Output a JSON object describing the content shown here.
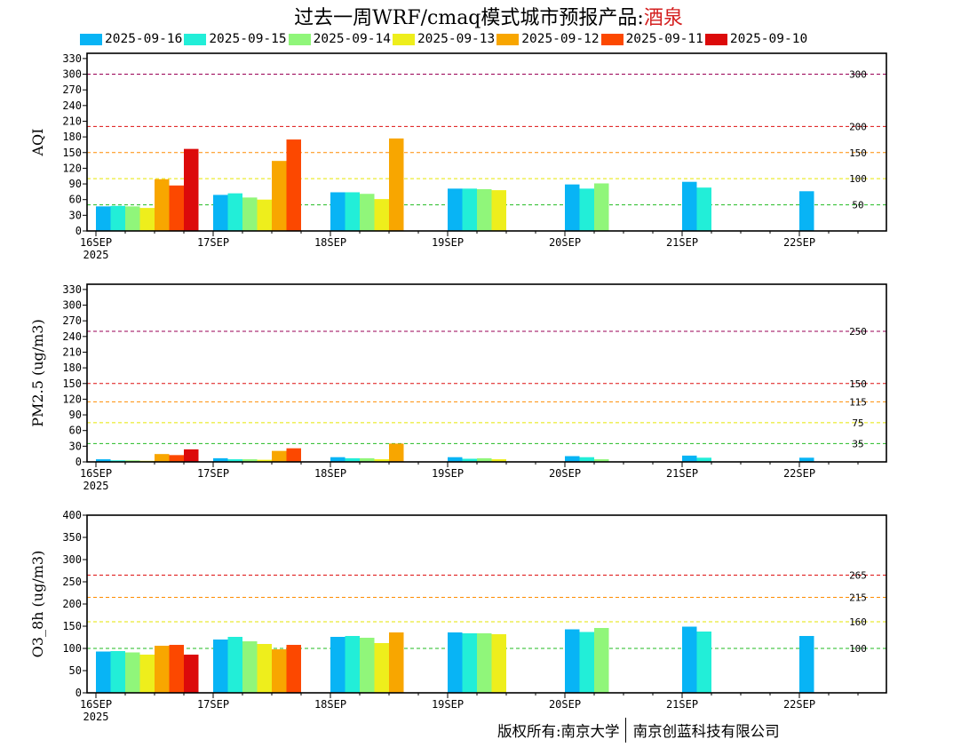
{
  "header": {
    "title_prefix": "过去一周WRF/cmaq模式城市预报产品:",
    "city": "酒泉"
  },
  "footer": {
    "left": "版权所有:南京大学",
    "right": "南京创蓝科技有限公司"
  },
  "chart_data": [
    {
      "type": "bar",
      "ylabel": "AQI",
      "ylim": [
        0,
        340
      ],
      "yticks": [
        0,
        30,
        60,
        90,
        120,
        150,
        180,
        210,
        240,
        270,
        300,
        330
      ],
      "thresholds": [
        {
          "value": 50,
          "label": "50",
          "color": "#22bb22"
        },
        {
          "value": 100,
          "label": "100",
          "color": "#e6e600"
        },
        {
          "value": 150,
          "label": "150",
          "color": "#ff8c00"
        },
        {
          "value": 200,
          "label": "200",
          "color": "#dd1111"
        },
        {
          "value": 300,
          "label": "300",
          "color": "#990055"
        }
      ],
      "days": [
        "16SEP",
        "17SEP",
        "18SEP",
        "19SEP",
        "20SEP",
        "21SEP",
        "22SEP"
      ],
      "year_label": "2025",
      "series": [
        {
          "name": "2025-09-16",
          "color": "#08b4f5",
          "values": [
            47,
            69,
            74,
            81,
            89,
            94,
            76
          ]
        },
        {
          "name": "2025-09-15",
          "color": "#22eed8",
          "values": [
            48,
            72,
            74,
            81,
            81,
            83,
            null
          ]
        },
        {
          "name": "2025-09-14",
          "color": "#90f67a",
          "values": [
            47,
            64,
            71,
            80,
            91,
            null,
            null
          ]
        },
        {
          "name": "2025-09-13",
          "color": "#eeee1c",
          "values": [
            44,
            60,
            61,
            78,
            null,
            null,
            null
          ]
        },
        {
          "name": "2025-09-12",
          "color": "#f8a600",
          "values": [
            99,
            134,
            177,
            null,
            null,
            null,
            null
          ]
        },
        {
          "name": "2025-09-11",
          "color": "#fc4800",
          "values": [
            87,
            175,
            null,
            null,
            null,
            null,
            null
          ]
        },
        {
          "name": "2025-09-10",
          "color": "#dc0a0a",
          "values": [
            157,
            null,
            null,
            null,
            null,
            null,
            null
          ]
        }
      ]
    },
    {
      "type": "bar",
      "ylabel": "PM2.5 (ug/m3)",
      "ylim": [
        0,
        340
      ],
      "yticks": [
        0,
        30,
        60,
        90,
        120,
        150,
        180,
        210,
        240,
        270,
        300,
        330
      ],
      "thresholds": [
        {
          "value": 35,
          "label": "35",
          "color": "#22bb22"
        },
        {
          "value": 75,
          "label": "75",
          "color": "#e6e600"
        },
        {
          "value": 115,
          "label": "115",
          "color": "#ff8c00"
        },
        {
          "value": 150,
          "label": "150",
          "color": "#dd1111"
        },
        {
          "value": 250,
          "label": "250",
          "color": "#990055"
        }
      ],
      "days": [
        "16SEP",
        "17SEP",
        "18SEP",
        "19SEP",
        "20SEP",
        "21SEP",
        "22SEP"
      ],
      "year_label": "2025",
      "series": [
        {
          "name": "2025-09-16",
          "color": "#08b4f5",
          "values": [
            5,
            7,
            9,
            9,
            11,
            12,
            8
          ]
        },
        {
          "name": "2025-09-15",
          "color": "#22eed8",
          "values": [
            3,
            5,
            7,
            6,
            9,
            8,
            null
          ]
        },
        {
          "name": "2025-09-14",
          "color": "#90f67a",
          "values": [
            3,
            5,
            7,
            7,
            5,
            null,
            null
          ]
        },
        {
          "name": "2025-09-13",
          "color": "#eeee1c",
          "values": [
            2,
            4,
            5,
            5,
            null,
            null,
            null
          ]
        },
        {
          "name": "2025-09-12",
          "color": "#f8a600",
          "values": [
            15,
            21,
            35,
            null,
            null,
            null,
            null
          ]
        },
        {
          "name": "2025-09-11",
          "color": "#fc4800",
          "values": [
            13,
            26,
            null,
            null,
            null,
            null,
            null
          ]
        },
        {
          "name": "2025-09-10",
          "color": "#dc0a0a",
          "values": [
            24,
            null,
            null,
            null,
            null,
            null,
            null
          ]
        }
      ]
    },
    {
      "type": "bar",
      "ylabel": "O3_8h (ug/m3)",
      "ylim": [
        0,
        400
      ],
      "yticks": [
        0,
        50,
        100,
        150,
        200,
        250,
        300,
        350,
        400
      ],
      "thresholds": [
        {
          "value": 100,
          "label": "100",
          "color": "#22bb22"
        },
        {
          "value": 160,
          "label": "160",
          "color": "#e6e600"
        },
        {
          "value": 215,
          "label": "215",
          "color": "#ff8c00"
        },
        {
          "value": 265,
          "label": "265",
          "color": "#dd1111"
        }
      ],
      "days": [
        "16SEP",
        "17SEP",
        "18SEP",
        "19SEP",
        "20SEP",
        "21SEP",
        "22SEP"
      ],
      "year_label": "2025",
      "series": [
        {
          "name": "2025-09-16",
          "color": "#08b4f5",
          "values": [
            93,
            120,
            126,
            136,
            143,
            149,
            128
          ]
        },
        {
          "name": "2025-09-15",
          "color": "#22eed8",
          "values": [
            94,
            126,
            128,
            134,
            137,
            138,
            null
          ]
        },
        {
          "name": "2025-09-14",
          "color": "#90f67a",
          "values": [
            91,
            116,
            124,
            134,
            146,
            null,
            null
          ]
        },
        {
          "name": "2025-09-13",
          "color": "#eeee1c",
          "values": [
            86,
            110,
            112,
            132,
            null,
            null,
            null
          ]
        },
        {
          "name": "2025-09-12",
          "color": "#f8a600",
          "values": [
            106,
            98,
            136,
            null,
            null,
            null,
            null
          ]
        },
        {
          "name": "2025-09-11",
          "color": "#fc4800",
          "values": [
            108,
            108,
            null,
            null,
            null,
            null,
            null
          ]
        },
        {
          "name": "2025-09-10",
          "color": "#dc0a0a",
          "values": [
            86,
            null,
            null,
            null,
            null,
            null,
            null
          ]
        }
      ]
    }
  ]
}
